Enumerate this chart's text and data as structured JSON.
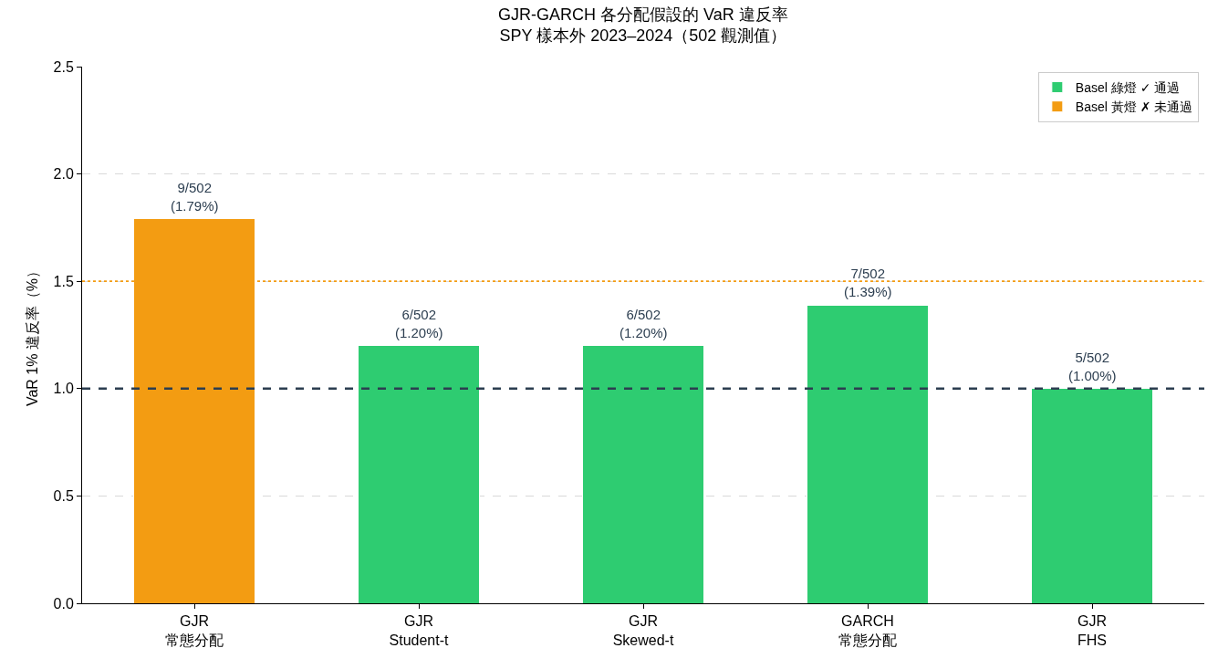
{
  "chart_data": {
    "type": "bar",
    "title": "GJR-GARCH 各分配假設的 VaR 違反率\nSPY 樣本外 2023–2024（502 觀測值）",
    "ylabel": "VaR 1% 違反率（%）",
    "categories": [
      "GJR\n常態分配",
      "GJR\nStudent-t",
      "GJR\nSkewed-t",
      "GARCH\n常態分配",
      "GJR\nFHS"
    ],
    "series": [
      {
        "name": "Basel 綠燈 ✓ 通過",
        "color": "#2ecc71",
        "values": [
          null,
          1.2,
          1.2,
          1.39,
          1.0
        ],
        "value_labels": [
          null,
          "6/502\n(1.20%)",
          "6/502\n(1.20%)",
          "7/502\n(1.39%)",
          "5/502\n(1.00%)"
        ]
      },
      {
        "name": "Basel 黃燈 ✗ 未通過",
        "color": "#f39c12",
        "values": [
          1.79,
          null,
          null,
          null,
          null
        ],
        "value_labels": [
          "9/502\n(1.79%)",
          null,
          null,
          null,
          null
        ]
      }
    ],
    "stacked": true,
    "ylim": [
      0,
      2.5
    ],
    "yticks": [
      {
        "value": 0,
        "label": "0.0"
      },
      {
        "value": 0.5,
        "label": "0.5"
      },
      {
        "value": 1,
        "label": "1.0"
      },
      {
        "value": 1.5,
        "label": "1.5"
      },
      {
        "value": 2,
        "label": "2.0"
      },
      {
        "value": 2.5,
        "label": "2.5"
      }
    ],
    "ref_lines": [
      {
        "axis": "y",
        "value": 1.0,
        "color": "#2c3e50",
        "line_style": "dashed"
      },
      {
        "axis": "y",
        "value": 1.5,
        "color": "#f39c12",
        "line_style": "dotted"
      }
    ],
    "grid": "y",
    "legend": "top right"
  }
}
